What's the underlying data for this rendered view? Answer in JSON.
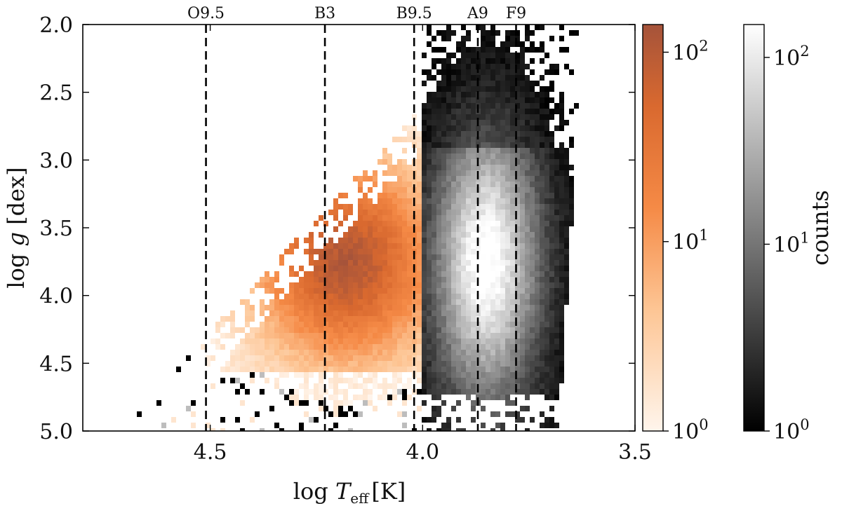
{
  "chart_data": {
    "type": "heatmap",
    "title": "",
    "xlabel": "log T_eff [K]",
    "xlabel_parts": {
      "prefix": "log ",
      "symbol": "T",
      "subscript": "eff",
      "unit": "[K]"
    },
    "ylabel": "log g [dex]",
    "ylabel_parts": {
      "prefix": "log ",
      "symbol": "g",
      "unit": " [dex]"
    },
    "xlim": [
      4.8,
      3.5
    ],
    "ylim": [
      5.0,
      2.0
    ],
    "x_reversed": true,
    "y_inverted": true,
    "xticks": [
      4.5,
      4.0,
      3.5
    ],
    "xtick_labels": [
      "4.5",
      "4.0",
      "3.5"
    ],
    "yticks": [
      2.0,
      2.5,
      3.0,
      3.5,
      4.0,
      4.5,
      5.0
    ],
    "ytick_labels": [
      "2.0",
      "2.5",
      "3.0",
      "3.5",
      "4.0",
      "4.5",
      "5.0"
    ],
    "grid": false,
    "spectral_type_lines": [
      {
        "label": "O9.5",
        "x": 4.51
      },
      {
        "label": "B3",
        "x": 4.23
      },
      {
        "label": "B9.5",
        "x": 4.02
      },
      {
        "label": "A9",
        "x": 3.87
      },
      {
        "label": "F9",
        "x": 3.78
      }
    ],
    "series": [
      {
        "colormap": "orange",
        "x_range": [
          4.68,
          4.0
        ],
        "peak": {
          "x": 4.18,
          "y": 3.75
        },
        "count_range": [
          1,
          140
        ]
      },
      {
        "colormap": "gray",
        "x_range": [
          4.0,
          3.63
        ],
        "peak": {
          "x": 3.85,
          "y": 3.75
        },
        "count_range": [
          1,
          150
        ]
      }
    ],
    "colorbars": [
      {
        "colormap": "orange",
        "scale": "log",
        "ticks": [
          {
            "base": "10",
            "exp": "0"
          },
          {
            "base": "10",
            "exp": "1"
          },
          {
            "base": "10",
            "exp": "2"
          }
        ],
        "label": ""
      },
      {
        "colormap": "gray",
        "scale": "log",
        "ticks": [
          {
            "base": "10",
            "exp": "0"
          },
          {
            "base": "10",
            "exp": "1"
          },
          {
            "base": "10",
            "exp": "2"
          }
        ],
        "label": "counts"
      }
    ]
  }
}
